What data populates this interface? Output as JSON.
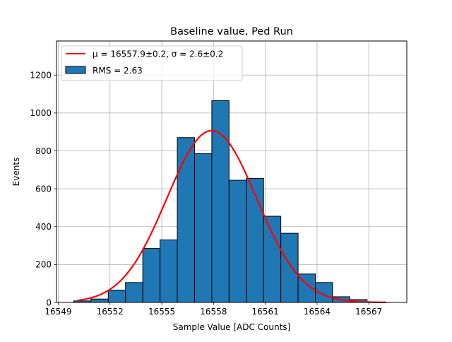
{
  "chart_data": {
    "type": "bar",
    "title": "Baseline value, Ped Run",
    "xlabel": "Sample Value [ADC Counts]",
    "ylabel": "Events",
    "xlim": [
      16548.9,
      16569.2
    ],
    "ylim": [
      0,
      1380
    ],
    "grid": true,
    "legend_position": "top-left",
    "x_ticks": [
      16549,
      16552,
      16555,
      16558,
      16561,
      16564,
      16567
    ],
    "y_ticks": [
      0,
      200,
      400,
      600,
      800,
      1000,
      1200
    ],
    "bin_edges": [
      16549.9,
      16550.9,
      16551.9,
      16552.9,
      16553.9,
      16554.9,
      16555.9,
      16556.9,
      16557.9,
      16558.9,
      16559.9,
      16560.9,
      16561.9,
      16562.9,
      16563.9,
      16564.9,
      16565.9,
      16566.9
    ],
    "counts": [
      8,
      18,
      65,
      105,
      285,
      330,
      870,
      785,
      1065,
      645,
      655,
      455,
      365,
      150,
      105,
      30,
      15
    ],
    "fit_curve": {
      "type": "gaussian",
      "mu": 16557.9,
      "sigma": 2.6,
      "amplitude": 907,
      "x_range": [
        16550.1,
        16568.0
      ],
      "color": "#ff0000"
    },
    "bar_color": "#1f77b4",
    "edge_color": "#000000",
    "legend": [
      {
        "label": "μ = 16557.9±0.2, σ = 2.6±0.2",
        "kind": "line",
        "color": "#ff0000"
      },
      {
        "label": "RMS = 2.63",
        "kind": "patch",
        "color": "#1f77b4"
      }
    ]
  }
}
